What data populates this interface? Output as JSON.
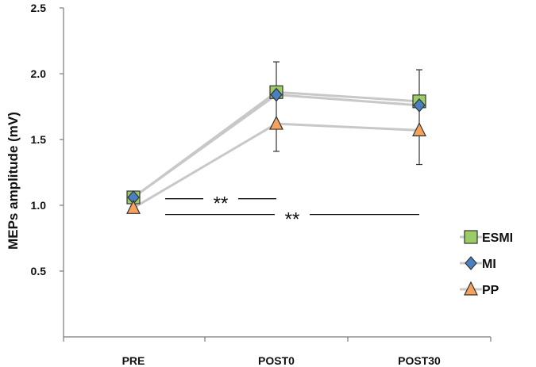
{
  "chart_data": {
    "type": "line",
    "title": "",
    "xlabel": "",
    "ylabel": "MEPs amplitude (mV)",
    "ylim": [
      0,
      2.5
    ],
    "yticks": [
      "0.5",
      "1.0",
      "1.5",
      "2.0",
      "2.5"
    ],
    "categories": [
      "PRE",
      "POST0",
      "POST30"
    ],
    "series": [
      {
        "name": "ESMI",
        "values": [
          1.06,
          1.86,
          1.79
        ],
        "marker": "square",
        "fill": "#9ccc65",
        "line": "#c8c8c8"
      },
      {
        "name": "MI",
        "values": [
          1.06,
          1.84,
          1.76
        ],
        "marker": "diamond",
        "fill": "#4a7fc1",
        "line": "#c8c8c8"
      },
      {
        "name": "PP",
        "values": [
          0.98,
          1.62,
          1.57
        ],
        "marker": "triangle",
        "fill": "#f5a25d",
        "line": "#c8c8c8",
        "error_bars": [
          null,
          [
            1.41,
            2.09
          ],
          [
            1.31,
            2.03
          ]
        ]
      }
    ],
    "significance": [
      {
        "label": "**",
        "from": "PRE",
        "to": "POST0",
        "y": 1.05
      },
      {
        "label": "**",
        "from": "PRE",
        "to": "POST30",
        "y": 0.93
      }
    ],
    "legend": {
      "position": "bottom-right"
    },
    "grid": false
  }
}
